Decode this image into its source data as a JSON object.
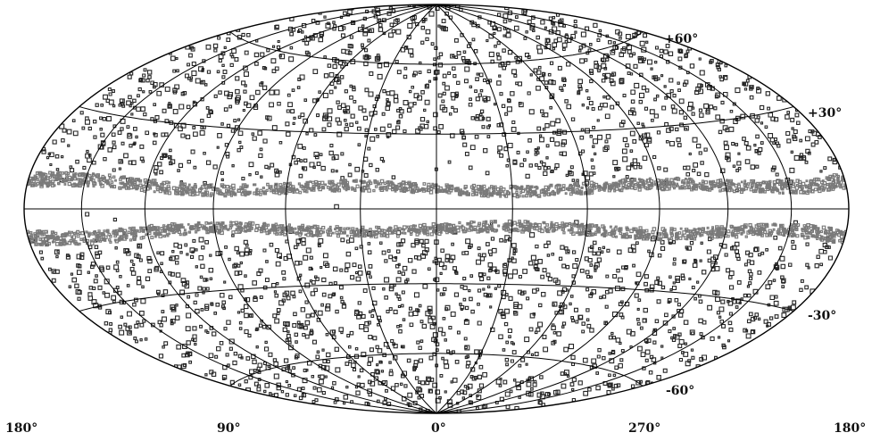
{
  "map": {
    "projection": "aitoff-hammer all-sky",
    "coordinate_system": "galactic",
    "colors": {
      "background": "#ffffff",
      "grid": "#000000",
      "sources": "#262626",
      "galactic_plane_band": "#7a7a7a"
    },
    "longitude_labels": [
      "180°",
      "90°",
      "0°",
      "270°",
      "180°"
    ],
    "latitude_labels": [
      "+60°",
      "+30°",
      "-30°",
      "-60°"
    ],
    "grid": {
      "meridian_step_deg": 30,
      "parallels_deg": [
        -60,
        -30,
        0,
        30,
        60
      ]
    },
    "sources_marker": "small open squares and circles"
  }
}
